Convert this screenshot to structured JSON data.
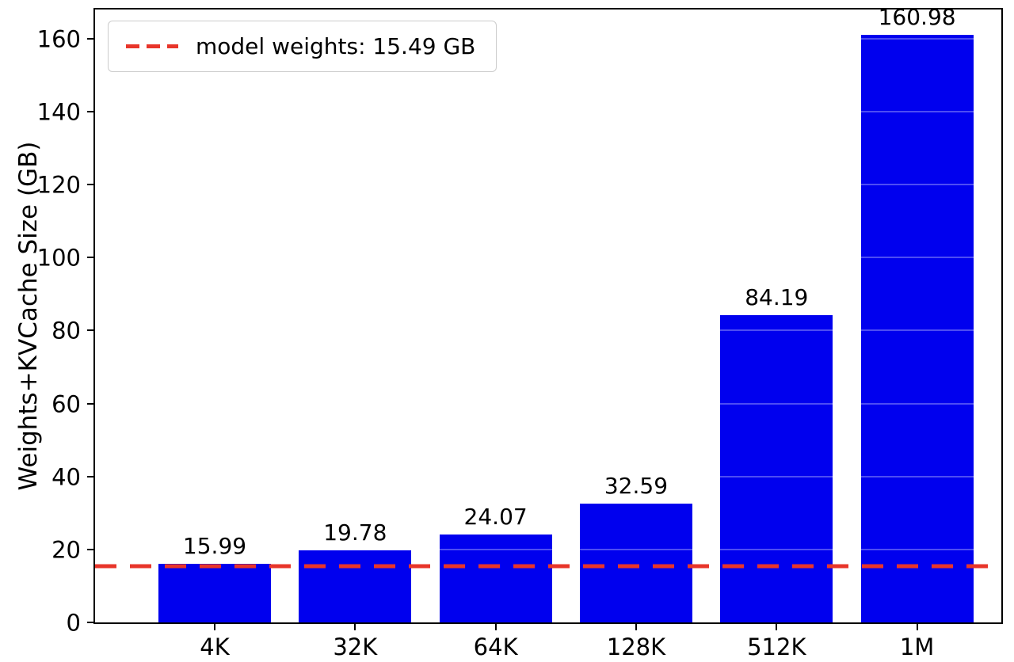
{
  "chart_data": {
    "type": "bar",
    "title": "",
    "xlabel": "",
    "ylabel": "Weights+KVCache Size (GB)",
    "categories": [
      "4K",
      "32K",
      "64K",
      "128K",
      "512K",
      "1M"
    ],
    "values": [
      15.99,
      19.78,
      24.07,
      32.59,
      84.19,
      160.98
    ],
    "bar_labels": [
      "15.99",
      "19.78",
      "24.07",
      "32.59",
      "84.19",
      "160.98"
    ],
    "ylim": [
      0,
      168
    ],
    "yticks": [
      0,
      20,
      40,
      60,
      80,
      100,
      120,
      140,
      160
    ],
    "bar_color": "#0000ee",
    "grid": false,
    "legend_position": "upper left",
    "reference_line": {
      "value": 15.49,
      "style": "dashed",
      "color": "#e8352a",
      "label": "model weights: 15.49 GB"
    }
  }
}
